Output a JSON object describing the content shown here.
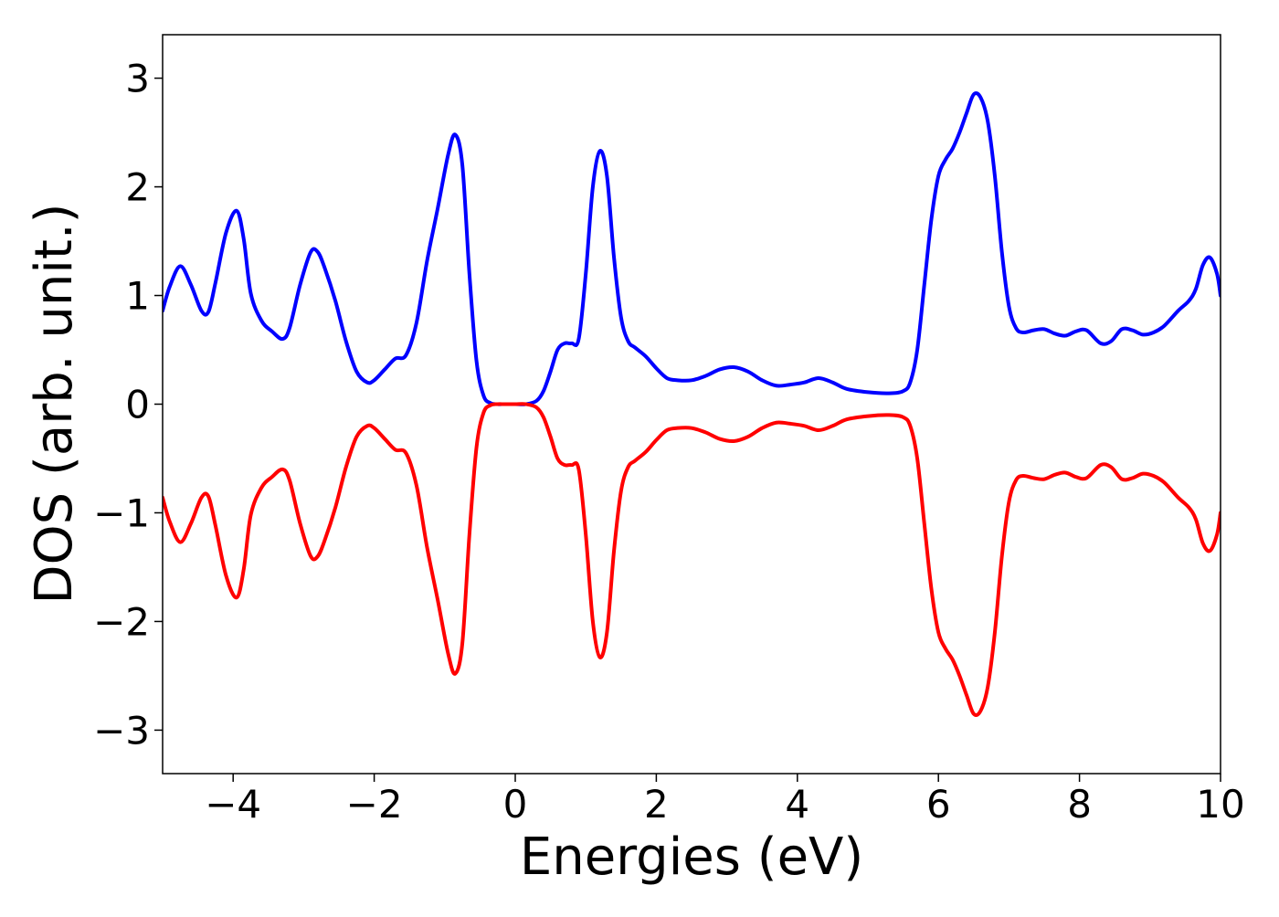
{
  "chart_data": {
    "type": "line",
    "title": "",
    "xlabel": "Energies (eV)",
    "ylabel": "DOS (arb. unit.)",
    "xlim": [
      -5,
      10
    ],
    "ylim": [
      -3.4,
      3.4
    ],
    "xticks": [
      -4,
      -2,
      0,
      2,
      4,
      6,
      8,
      10
    ],
    "yticks": [
      -3,
      -2,
      -1,
      0,
      1,
      2,
      3
    ],
    "xtick_labels": [
      "−4",
      "−2",
      "0",
      "2",
      "4",
      "6",
      "8",
      "10"
    ],
    "ytick_labels": [
      "−3",
      "−2",
      "−1",
      "0",
      "1",
      "2",
      "3"
    ],
    "grid": false,
    "legend": "none",
    "series": [
      {
        "color": "#0000ff",
        "x": [
          -5.0,
          -4.9,
          -4.75,
          -4.6,
          -4.45,
          -4.35,
          -4.25,
          -4.1,
          -3.95,
          -3.85,
          -3.75,
          -3.6,
          -3.45,
          -3.3,
          -3.2,
          -3.05,
          -2.9,
          -2.8,
          -2.7,
          -2.55,
          -2.4,
          -2.25,
          -2.1,
          -2.0,
          -1.85,
          -1.7,
          -1.55,
          -1.4,
          -1.25,
          -1.1,
          -0.95,
          -0.85,
          -0.75,
          -0.65,
          -0.55,
          -0.45,
          -0.35,
          -0.25,
          -0.15,
          0.0,
          0.15,
          0.3,
          0.4,
          0.5,
          0.6,
          0.7,
          0.8,
          0.9,
          1.0,
          1.1,
          1.2,
          1.3,
          1.4,
          1.5,
          1.6,
          1.7,
          1.85,
          2.0,
          2.15,
          2.3,
          2.5,
          2.7,
          2.9,
          3.1,
          3.3,
          3.5,
          3.7,
          3.9,
          4.1,
          4.3,
          4.5,
          4.7,
          5.0,
          5.3,
          5.5,
          5.6,
          5.7,
          5.8,
          5.9,
          6.0,
          6.1,
          6.2,
          6.3,
          6.4,
          6.5,
          6.6,
          6.7,
          6.8,
          6.9,
          7.0,
          7.1,
          7.2,
          7.35,
          7.5,
          7.65,
          7.8,
          7.95,
          8.1,
          8.3,
          8.45,
          8.6,
          8.75,
          8.9,
          9.05,
          9.2,
          9.4,
          9.55,
          9.65,
          9.75,
          9.85,
          9.95,
          10.0
        ],
        "values": [
          0.86,
          1.08,
          1.27,
          1.1,
          0.86,
          0.85,
          1.12,
          1.58,
          1.78,
          1.52,
          1.02,
          0.77,
          0.67,
          0.6,
          0.7,
          1.1,
          1.4,
          1.4,
          1.25,
          0.95,
          0.58,
          0.3,
          0.2,
          0.22,
          0.32,
          0.42,
          0.45,
          0.75,
          1.32,
          1.8,
          2.3,
          2.48,
          2.2,
          1.2,
          0.4,
          0.08,
          0.01,
          0.0,
          0.0,
          0.0,
          0.0,
          0.03,
          0.12,
          0.3,
          0.5,
          0.56,
          0.56,
          0.6,
          1.2,
          2.0,
          2.33,
          2.1,
          1.35,
          0.8,
          0.58,
          0.52,
          0.44,
          0.33,
          0.24,
          0.22,
          0.22,
          0.26,
          0.32,
          0.34,
          0.3,
          0.22,
          0.17,
          0.18,
          0.2,
          0.24,
          0.2,
          0.14,
          0.11,
          0.1,
          0.12,
          0.2,
          0.5,
          1.1,
          1.7,
          2.1,
          2.25,
          2.35,
          2.5,
          2.68,
          2.85,
          2.82,
          2.6,
          2.1,
          1.4,
          0.9,
          0.7,
          0.66,
          0.68,
          0.69,
          0.65,
          0.63,
          0.67,
          0.68,
          0.56,
          0.58,
          0.69,
          0.68,
          0.64,
          0.66,
          0.72,
          0.86,
          0.95,
          1.06,
          1.28,
          1.35,
          1.2,
          1.0
        ]
      },
      {
        "color": "#ff0000",
        "x": [
          -5.0,
          -4.9,
          -4.75,
          -4.6,
          -4.45,
          -4.35,
          -4.25,
          -4.1,
          -3.95,
          -3.85,
          -3.75,
          -3.6,
          -3.45,
          -3.3,
          -3.2,
          -3.05,
          -2.9,
          -2.8,
          -2.7,
          -2.55,
          -2.4,
          -2.25,
          -2.1,
          -2.0,
          -1.85,
          -1.7,
          -1.55,
          -1.4,
          -1.25,
          -1.1,
          -0.95,
          -0.85,
          -0.75,
          -0.65,
          -0.55,
          -0.45,
          -0.35,
          -0.25,
          -0.15,
          0.0,
          0.15,
          0.3,
          0.4,
          0.5,
          0.6,
          0.7,
          0.8,
          0.9,
          1.0,
          1.1,
          1.2,
          1.3,
          1.4,
          1.5,
          1.6,
          1.7,
          1.85,
          2.0,
          2.15,
          2.3,
          2.5,
          2.7,
          2.9,
          3.1,
          3.3,
          3.5,
          3.7,
          3.9,
          4.1,
          4.3,
          4.5,
          4.7,
          5.0,
          5.3,
          5.5,
          5.6,
          5.7,
          5.8,
          5.9,
          6.0,
          6.1,
          6.2,
          6.3,
          6.4,
          6.5,
          6.6,
          6.7,
          6.8,
          6.9,
          7.0,
          7.1,
          7.2,
          7.35,
          7.5,
          7.65,
          7.8,
          7.95,
          8.1,
          8.3,
          8.45,
          8.6,
          8.75,
          8.9,
          9.05,
          9.2,
          9.4,
          9.55,
          9.65,
          9.75,
          9.85,
          9.95,
          10.0
        ],
        "values": [
          -0.86,
          -1.08,
          -1.27,
          -1.1,
          -0.86,
          -0.85,
          -1.12,
          -1.58,
          -1.78,
          -1.52,
          -1.02,
          -0.77,
          -0.67,
          -0.6,
          -0.7,
          -1.1,
          -1.4,
          -1.4,
          -1.25,
          -0.95,
          -0.58,
          -0.3,
          -0.2,
          -0.22,
          -0.32,
          -0.42,
          -0.45,
          -0.75,
          -1.32,
          -1.8,
          -2.3,
          -2.48,
          -2.2,
          -1.2,
          -0.4,
          -0.08,
          -0.01,
          0.0,
          0.0,
          0.0,
          0.0,
          -0.03,
          -0.12,
          -0.3,
          -0.5,
          -0.56,
          -0.56,
          -0.6,
          -1.2,
          -2.0,
          -2.33,
          -2.1,
          -1.35,
          -0.8,
          -0.58,
          -0.52,
          -0.44,
          -0.33,
          -0.24,
          -0.22,
          -0.22,
          -0.26,
          -0.32,
          -0.34,
          -0.3,
          -0.22,
          -0.17,
          -0.18,
          -0.2,
          -0.24,
          -0.2,
          -0.14,
          -0.11,
          -0.1,
          -0.12,
          -0.2,
          -0.5,
          -1.1,
          -1.7,
          -2.1,
          -2.25,
          -2.35,
          -2.5,
          -2.68,
          -2.85,
          -2.82,
          -2.6,
          -2.1,
          -1.4,
          -0.9,
          -0.7,
          -0.66,
          -0.68,
          -0.69,
          -0.65,
          -0.63,
          -0.67,
          -0.68,
          -0.56,
          -0.58,
          -0.69,
          -0.68,
          -0.64,
          -0.66,
          -0.72,
          -0.86,
          -0.95,
          -1.06,
          -1.28,
          -1.35,
          -1.2,
          -1.0
        ]
      }
    ]
  }
}
